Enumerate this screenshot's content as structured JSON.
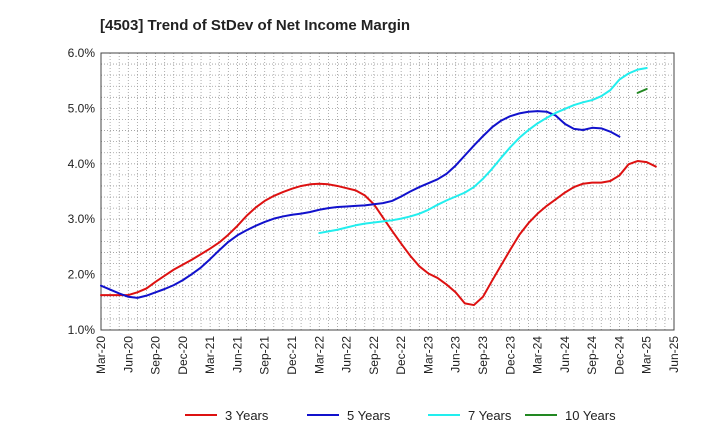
{
  "chart_data": {
    "type": "line",
    "title": "[4503]  Trend of StDev of Net Income Margin",
    "xlabel": "",
    "ylabel": "",
    "x_tick_labels": [
      "Mar-20",
      "Jun-20",
      "Sep-20",
      "Dec-20",
      "Mar-21",
      "Jun-21",
      "Sep-21",
      "Dec-21",
      "Mar-22",
      "Jun-22",
      "Sep-22",
      "Dec-22",
      "Mar-23",
      "Jun-23",
      "Sep-23",
      "Dec-23",
      "Mar-24",
      "Jun-24",
      "Sep-24",
      "Dec-24",
      "Mar-25",
      "Jun-25"
    ],
    "y_tick_labels": [
      "1.0%",
      "2.0%",
      "3.0%",
      "4.0%",
      "5.0%",
      "6.0%"
    ],
    "ylim": [
      1.0,
      6.0
    ],
    "grid": true,
    "legend_position": "bottom",
    "series": [
      {
        "name": "3 Years",
        "color": "#dd1111",
        "start_index": 0,
        "values": [
          1.63,
          1.63,
          1.63,
          1.63,
          1.68,
          1.75,
          1.87,
          1.98,
          2.09,
          2.18,
          2.27,
          2.37,
          2.47,
          2.58,
          2.72,
          2.88,
          3.06,
          3.21,
          3.33,
          3.42,
          3.49,
          3.55,
          3.6,
          3.63,
          3.64,
          3.63,
          3.6,
          3.56,
          3.52,
          3.43,
          3.27,
          3.03,
          2.79,
          2.56,
          2.34,
          2.15,
          2.02,
          1.94,
          1.82,
          1.68,
          1.48,
          1.45,
          1.6,
          1.89,
          2.17,
          2.45,
          2.72,
          2.93,
          3.1,
          3.24,
          3.36,
          3.48,
          3.58,
          3.64,
          3.66,
          3.66,
          3.69,
          3.79,
          3.99,
          4.05,
          4.03,
          3.95
        ]
      },
      {
        "name": "5 Years",
        "color": "#1111cc",
        "start_index": 0,
        "values": [
          1.8,
          1.73,
          1.66,
          1.6,
          1.58,
          1.62,
          1.68,
          1.74,
          1.81,
          1.9,
          2.01,
          2.13,
          2.28,
          2.44,
          2.59,
          2.71,
          2.8,
          2.88,
          2.95,
          3.01,
          3.05,
          3.08,
          3.1,
          3.13,
          3.17,
          3.2,
          3.22,
          3.23,
          3.24,
          3.25,
          3.27,
          3.29,
          3.33,
          3.41,
          3.5,
          3.58,
          3.65,
          3.72,
          3.82,
          3.97,
          4.15,
          4.33,
          4.5,
          4.66,
          4.78,
          4.86,
          4.91,
          4.94,
          4.95,
          4.94,
          4.87,
          4.72,
          4.63,
          4.61,
          4.65,
          4.64,
          4.58,
          4.49
        ]
      },
      {
        "name": "7 Years",
        "color": "#22eeee",
        "start_index": 24,
        "values": [
          2.75,
          2.78,
          2.81,
          2.85,
          2.89,
          2.92,
          2.94,
          2.96,
          2.98,
          3.01,
          3.05,
          3.1,
          3.17,
          3.26,
          3.34,
          3.41,
          3.48,
          3.58,
          3.73,
          3.91,
          4.11,
          4.3,
          4.47,
          4.61,
          4.73,
          4.83,
          4.92,
          4.99,
          5.06,
          5.11,
          5.15,
          5.22,
          5.33,
          5.52,
          5.63,
          5.7,
          5.73
        ]
      },
      {
        "name": "10 Years",
        "color": "#228822",
        "start_index": 59,
        "values": [
          5.28,
          5.35
        ]
      }
    ]
  }
}
